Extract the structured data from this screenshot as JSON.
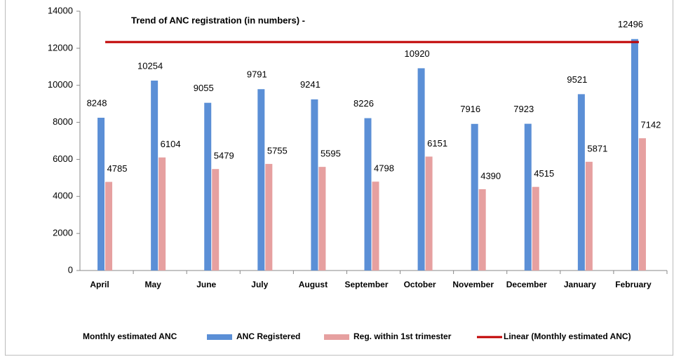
{
  "chart_data": {
    "type": "bar",
    "title": "Trend of ANC registration (in numbers) -",
    "categories": [
      "April",
      "May",
      "June",
      "July",
      "August",
      "September",
      "October",
      "November",
      "December",
      "January",
      "February"
    ],
    "series": [
      {
        "name": "Monthly estimated ANC",
        "color": null,
        "values": [
          null,
          null,
          null,
          null,
          null,
          null,
          null,
          null,
          null,
          null,
          null
        ]
      },
      {
        "name": "ANC Registered",
        "color": "#5b8fd6",
        "values": [
          8248,
          10254,
          9055,
          9791,
          9241,
          8226,
          10920,
          7916,
          7923,
          9521,
          12496
        ]
      },
      {
        "name": "Reg. within 1st trimester",
        "color": "#e6a0a0",
        "values": [
          4785,
          6104,
          5479,
          5755,
          5595,
          4798,
          6151,
          4390,
          4515,
          5871,
          7142
        ]
      },
      {
        "name": "Linear (Monthly estimated ANC)",
        "color": "#c00000",
        "type": "line",
        "values": [
          12335,
          12335,
          12335,
          12335,
          12335,
          12335,
          12335,
          12335,
          12335,
          12335,
          12335
        ]
      }
    ],
    "ylim": [
      0,
      14000
    ],
    "yticks": [
      0,
      2000,
      4000,
      6000,
      8000,
      10000,
      12000,
      14000
    ],
    "grid": false,
    "legend": "bottom"
  }
}
